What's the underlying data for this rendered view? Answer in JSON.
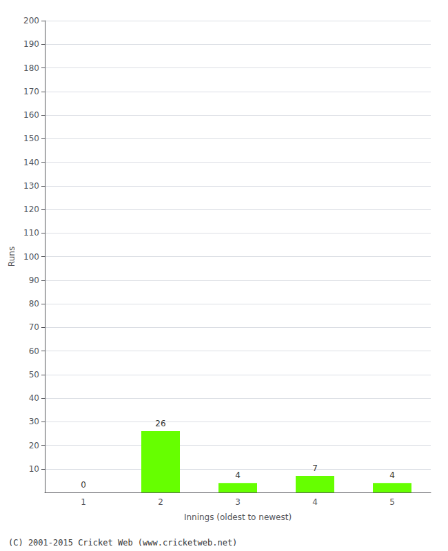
{
  "chart_data": {
    "type": "bar",
    "categories": [
      "1",
      "2",
      "3",
      "4",
      "5"
    ],
    "values": [
      0,
      26,
      4,
      7,
      4
    ],
    "color": "#66ff00",
    "xlabel": "Innings (oldest to newest)",
    "ylabel": "Runs",
    "ylim": [
      0,
      200
    ],
    "yticks": [
      10,
      20,
      30,
      40,
      50,
      60,
      70,
      80,
      90,
      100,
      110,
      120,
      130,
      140,
      150,
      160,
      170,
      180,
      190,
      200
    ],
    "grid": true,
    "data_labels": true,
    "annotations": [
      "(C) 2001-2015 Cricket Web (www.cricketweb.net)"
    ]
  }
}
